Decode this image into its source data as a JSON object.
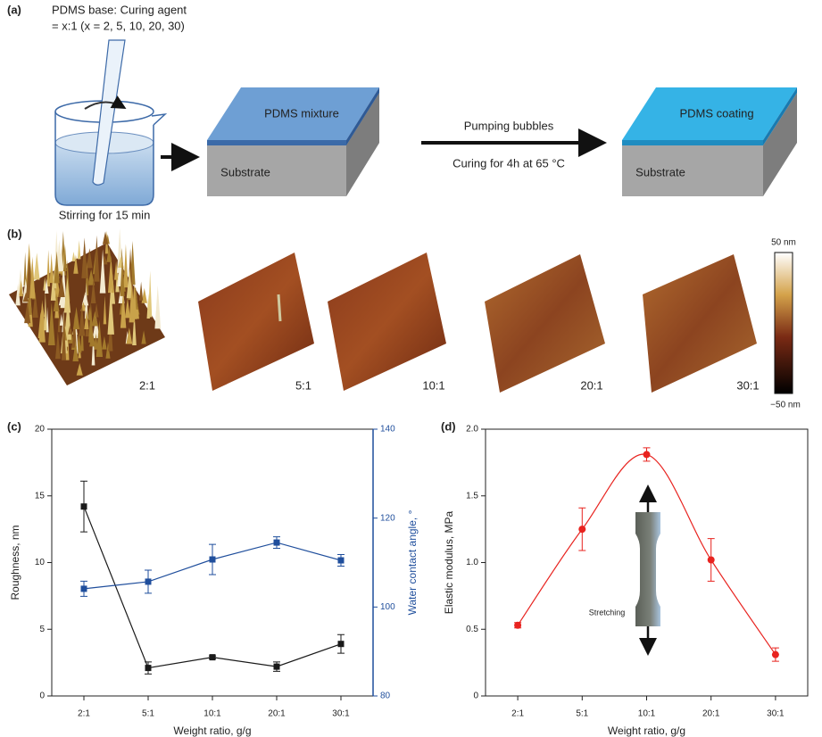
{
  "diagram": {
    "panel_label": "(a)",
    "recipe": [
      "PDMS base: Curing agent",
      "= x:1 (x = 2, 5, 10, 20, 30)"
    ],
    "stirring": "Stirring for 15 min",
    "blocks": [
      {
        "top": "PDMS mixture",
        "bottom": "Substrate"
      },
      {
        "top": "PDMS coating",
        "bottom": "Substrate"
      }
    ],
    "step": [
      "Pumping bubbles",
      "Curing for 4h at 65 °C"
    ]
  },
  "afm": {
    "panel_label": "(b)",
    "samples": [
      "2:1",
      "5:1",
      "10:1",
      "20:1",
      "30:1"
    ],
    "colorbar": [
      "50 nm",
      "−50 nm"
    ]
  },
  "chart_data": [
    {
      "panel_label": "(c)",
      "type": "line",
      "categories": [
        "2:1",
        "5:1",
        "10:1",
        "20:1",
        "30:1"
      ],
      "xlabel": "Weight ratio, g/g",
      "ylabel": "Roughness, nm",
      "y2label": "Water contact angle, °",
      "ylim": [
        0,
        20
      ],
      "yticks": [
        0,
        5,
        10,
        15,
        20
      ],
      "y2lim": [
        80,
        140
      ],
      "y2ticks": [
        80,
        100,
        120,
        140
      ],
      "y2color": "#1f4e9c",
      "series": [
        {
          "color": "#1a1a1a",
          "marker": "square",
          "values": [
            14.2,
            2.1,
            2.9,
            2.2,
            3.9
          ],
          "errors": [
            1.9,
            0.45,
            0.1,
            0.35,
            0.7
          ]
        },
        {
          "color": "#1f4e9c",
          "axis": "y2",
          "marker": "square",
          "values": [
            104.1,
            105.7,
            110.7,
            114.5,
            110.5
          ],
          "errors": [
            1.7,
            2.6,
            3.4,
            1.3,
            1.3
          ]
        }
      ]
    },
    {
      "panel_label": "(d)",
      "type": "line",
      "smooth": true,
      "categories": [
        "2:1",
        "5:1",
        "10:1",
        "20:1",
        "30:1"
      ],
      "xlabel": "Weight ratio, g/g",
      "ylabel": "Elastic modulus, MPa",
      "annotation": "Stretching",
      "ylim": [
        0,
        2
      ],
      "yticks": [
        0,
        0.5,
        {
          "value": 1,
          "label": "1.0"
        },
        1.5,
        {
          "value": 2,
          "label": "2.0"
        }
      ],
      "series": [
        {
          "color": "#e8231f",
          "marker": "circle",
          "values": [
            0.53,
            1.25,
            1.81,
            1.02,
            0.31
          ],
          "errors": [
            0.02,
            0.16,
            0.05,
            0.16,
            0.05
          ]
        }
      ]
    }
  ]
}
